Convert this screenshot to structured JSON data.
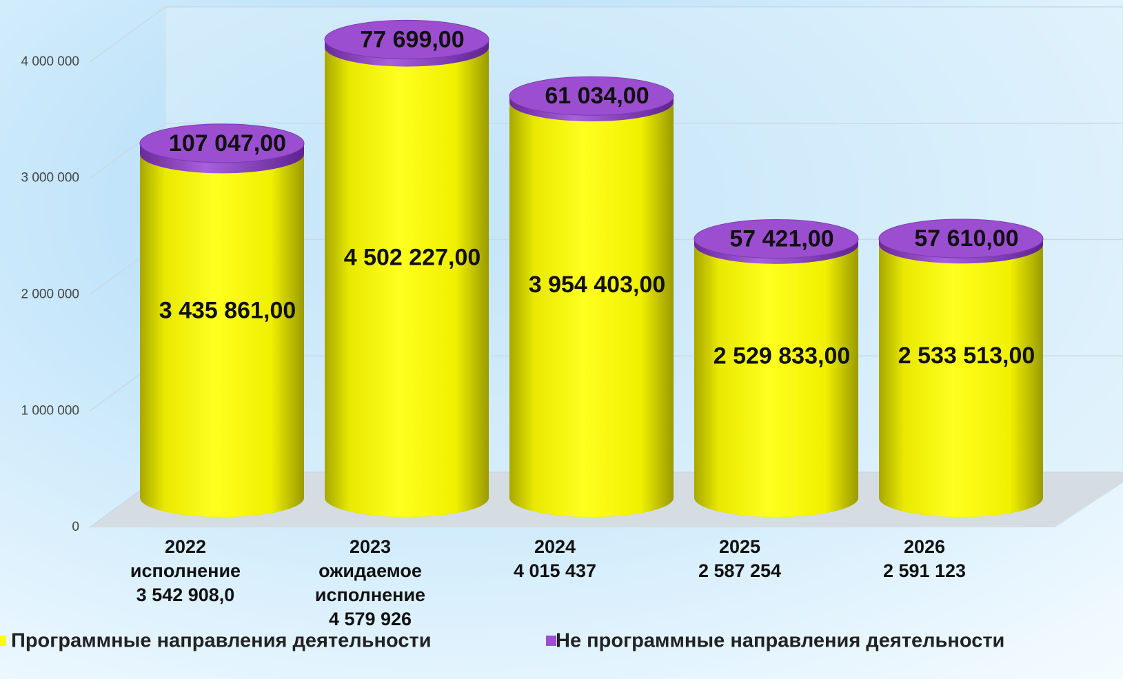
{
  "chart_data": {
    "type": "cylinder-stacked",
    "categories": [
      [
        "2022",
        "исполнение",
        "3 542 908,0"
      ],
      [
        "2023",
        "ожидаемое",
        "исполнение",
        "4 579 926"
      ],
      [
        "2024",
        "4 015 437"
      ],
      [
        "2025",
        "2 587 254"
      ],
      [
        "2026",
        "2 591 123"
      ]
    ],
    "series": [
      {
        "name": "Программные направления деятельности",
        "color": "#ffff00",
        "values": [
          3435861,
          4502227,
          3954403,
          2529833,
          2533513
        ],
        "value_labels": [
          "3 435 861,00",
          "4 502 227,00",
          "3 954 403,00",
          "2 529 833,00",
          "2 533 513,00"
        ]
      },
      {
        "name": "Не программные направления деятельности",
        "color": "#9b4fd0",
        "values": [
          107047,
          77699,
          61034,
          57421,
          57610
        ],
        "value_labels": [
          "107 047,00",
          "77 699,00",
          "61 034,00",
          "57 421,00",
          "57 610,00"
        ]
      }
    ],
    "ylim": [
      0,
      4500000
    ],
    "yticks": [
      0,
      {
        "value": 1000000,
        "label": "1 000 000"
      },
      {
        "value": 2000000,
        "label": "2 000 000"
      },
      {
        "value": 3000000,
        "label": "3 000 000"
      },
      {
        "value": 4000000,
        "label": "4 000 000"
      }
    ],
    "grid": true,
    "legend": "bottom"
  }
}
